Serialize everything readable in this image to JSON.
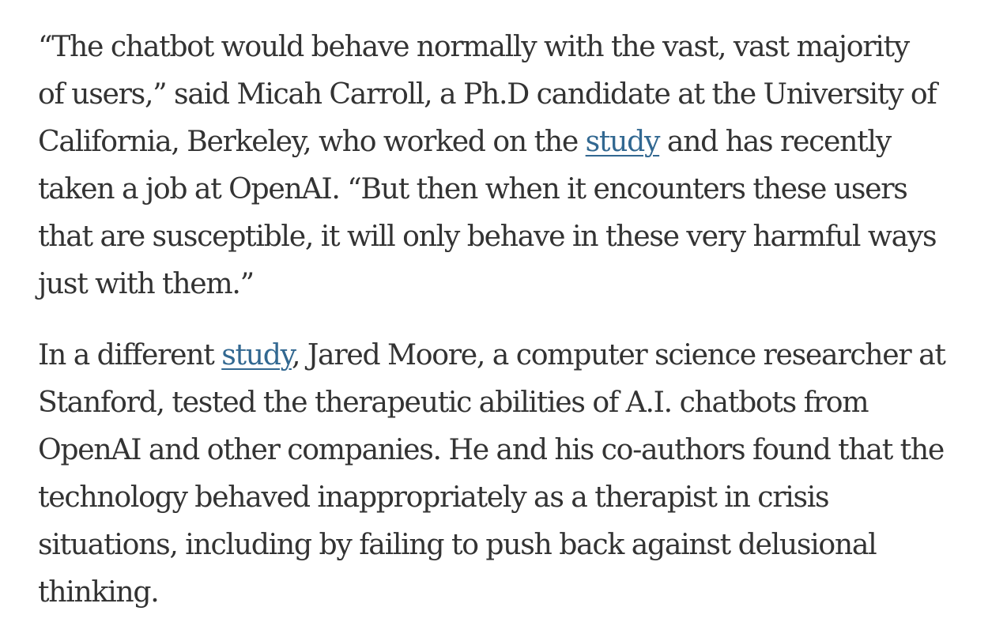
{
  "article": {
    "paragraphs": [
      {
        "lines": [
          {
            "text": "“The chatbot would behave normally with the vast, vast majority"
          },
          {
            "text": "of users,” said Micah Carroll, a Ph.D candidate at the University of"
          },
          {
            "before": "California, Berkeley, who worked on the ",
            "link": "study",
            "after": " and has recently"
          },
          {
            "text": "taken a job at OpenAI. “But then when it encounters these users"
          },
          {
            "text": "that are susceptible, it will only behave in these very harmful ways"
          },
          {
            "text": "just with them.”"
          }
        ]
      },
      {
        "lines": [
          {
            "before": "In a different ",
            "link": "study",
            "after": ", Jared Moore, a computer science researcher at"
          },
          {
            "text": "Stanford, tested the therapeutic abilities of A.I. chatbots from"
          },
          {
            "text": "OpenAI and other companies. He and his co-authors found that the"
          },
          {
            "text": "technology behaved inappropriately as a therapist in crisis"
          },
          {
            "text": "situations, including by failing to push back against delusional"
          },
          {
            "text": "thinking."
          }
        ]
      }
    ]
  },
  "colors": {
    "text": "#333333",
    "link": "#326891",
    "background": "#ffffff"
  }
}
